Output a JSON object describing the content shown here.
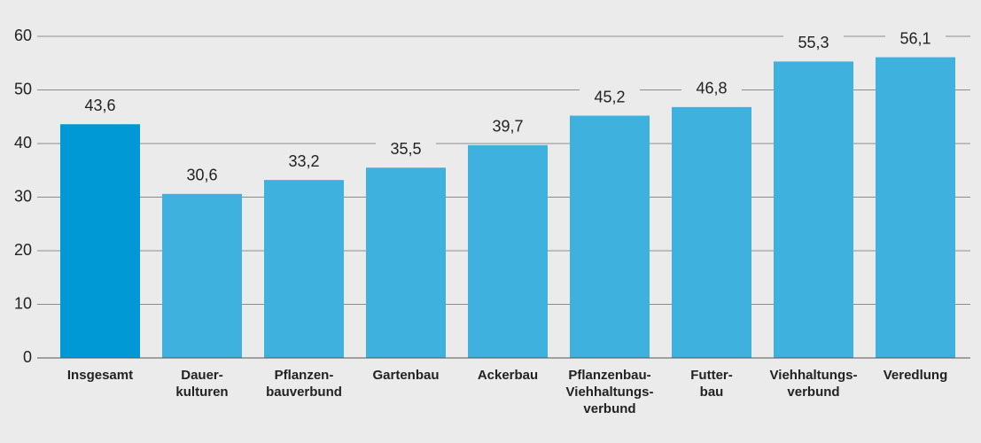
{
  "chart_data": {
    "type": "bar",
    "categories": [
      "Insgesamt",
      "Dauer-\nkulturen",
      "Pflanzen-\nbauverbund",
      "Gartenbau",
      "Ackerbau",
      "Pflanzenbau-\nViehhaltungs-\nverbund",
      "Futter-\nbau",
      "Viehhaltungs-\nverbund",
      "Veredlung"
    ],
    "values": [
      43.6,
      30.6,
      33.2,
      35.5,
      39.7,
      45.2,
      46.8,
      55.3,
      56.1
    ],
    "value_labels": [
      "43,6",
      "30,6",
      "33,2",
      "35,5",
      "39,7",
      "45,2",
      "46,8",
      "55,3",
      "56,1"
    ],
    "colors": [
      "#0099d6",
      "#3fb1df",
      "#3fb1df",
      "#3fb1df",
      "#3fb1df",
      "#3fb1df",
      "#3fb1df",
      "#3fb1df",
      "#3fb1df"
    ],
    "ylim": [
      0,
      60
    ],
    "yticks": [
      0,
      10,
      20,
      30,
      40,
      50,
      60
    ],
    "grid": true
  }
}
